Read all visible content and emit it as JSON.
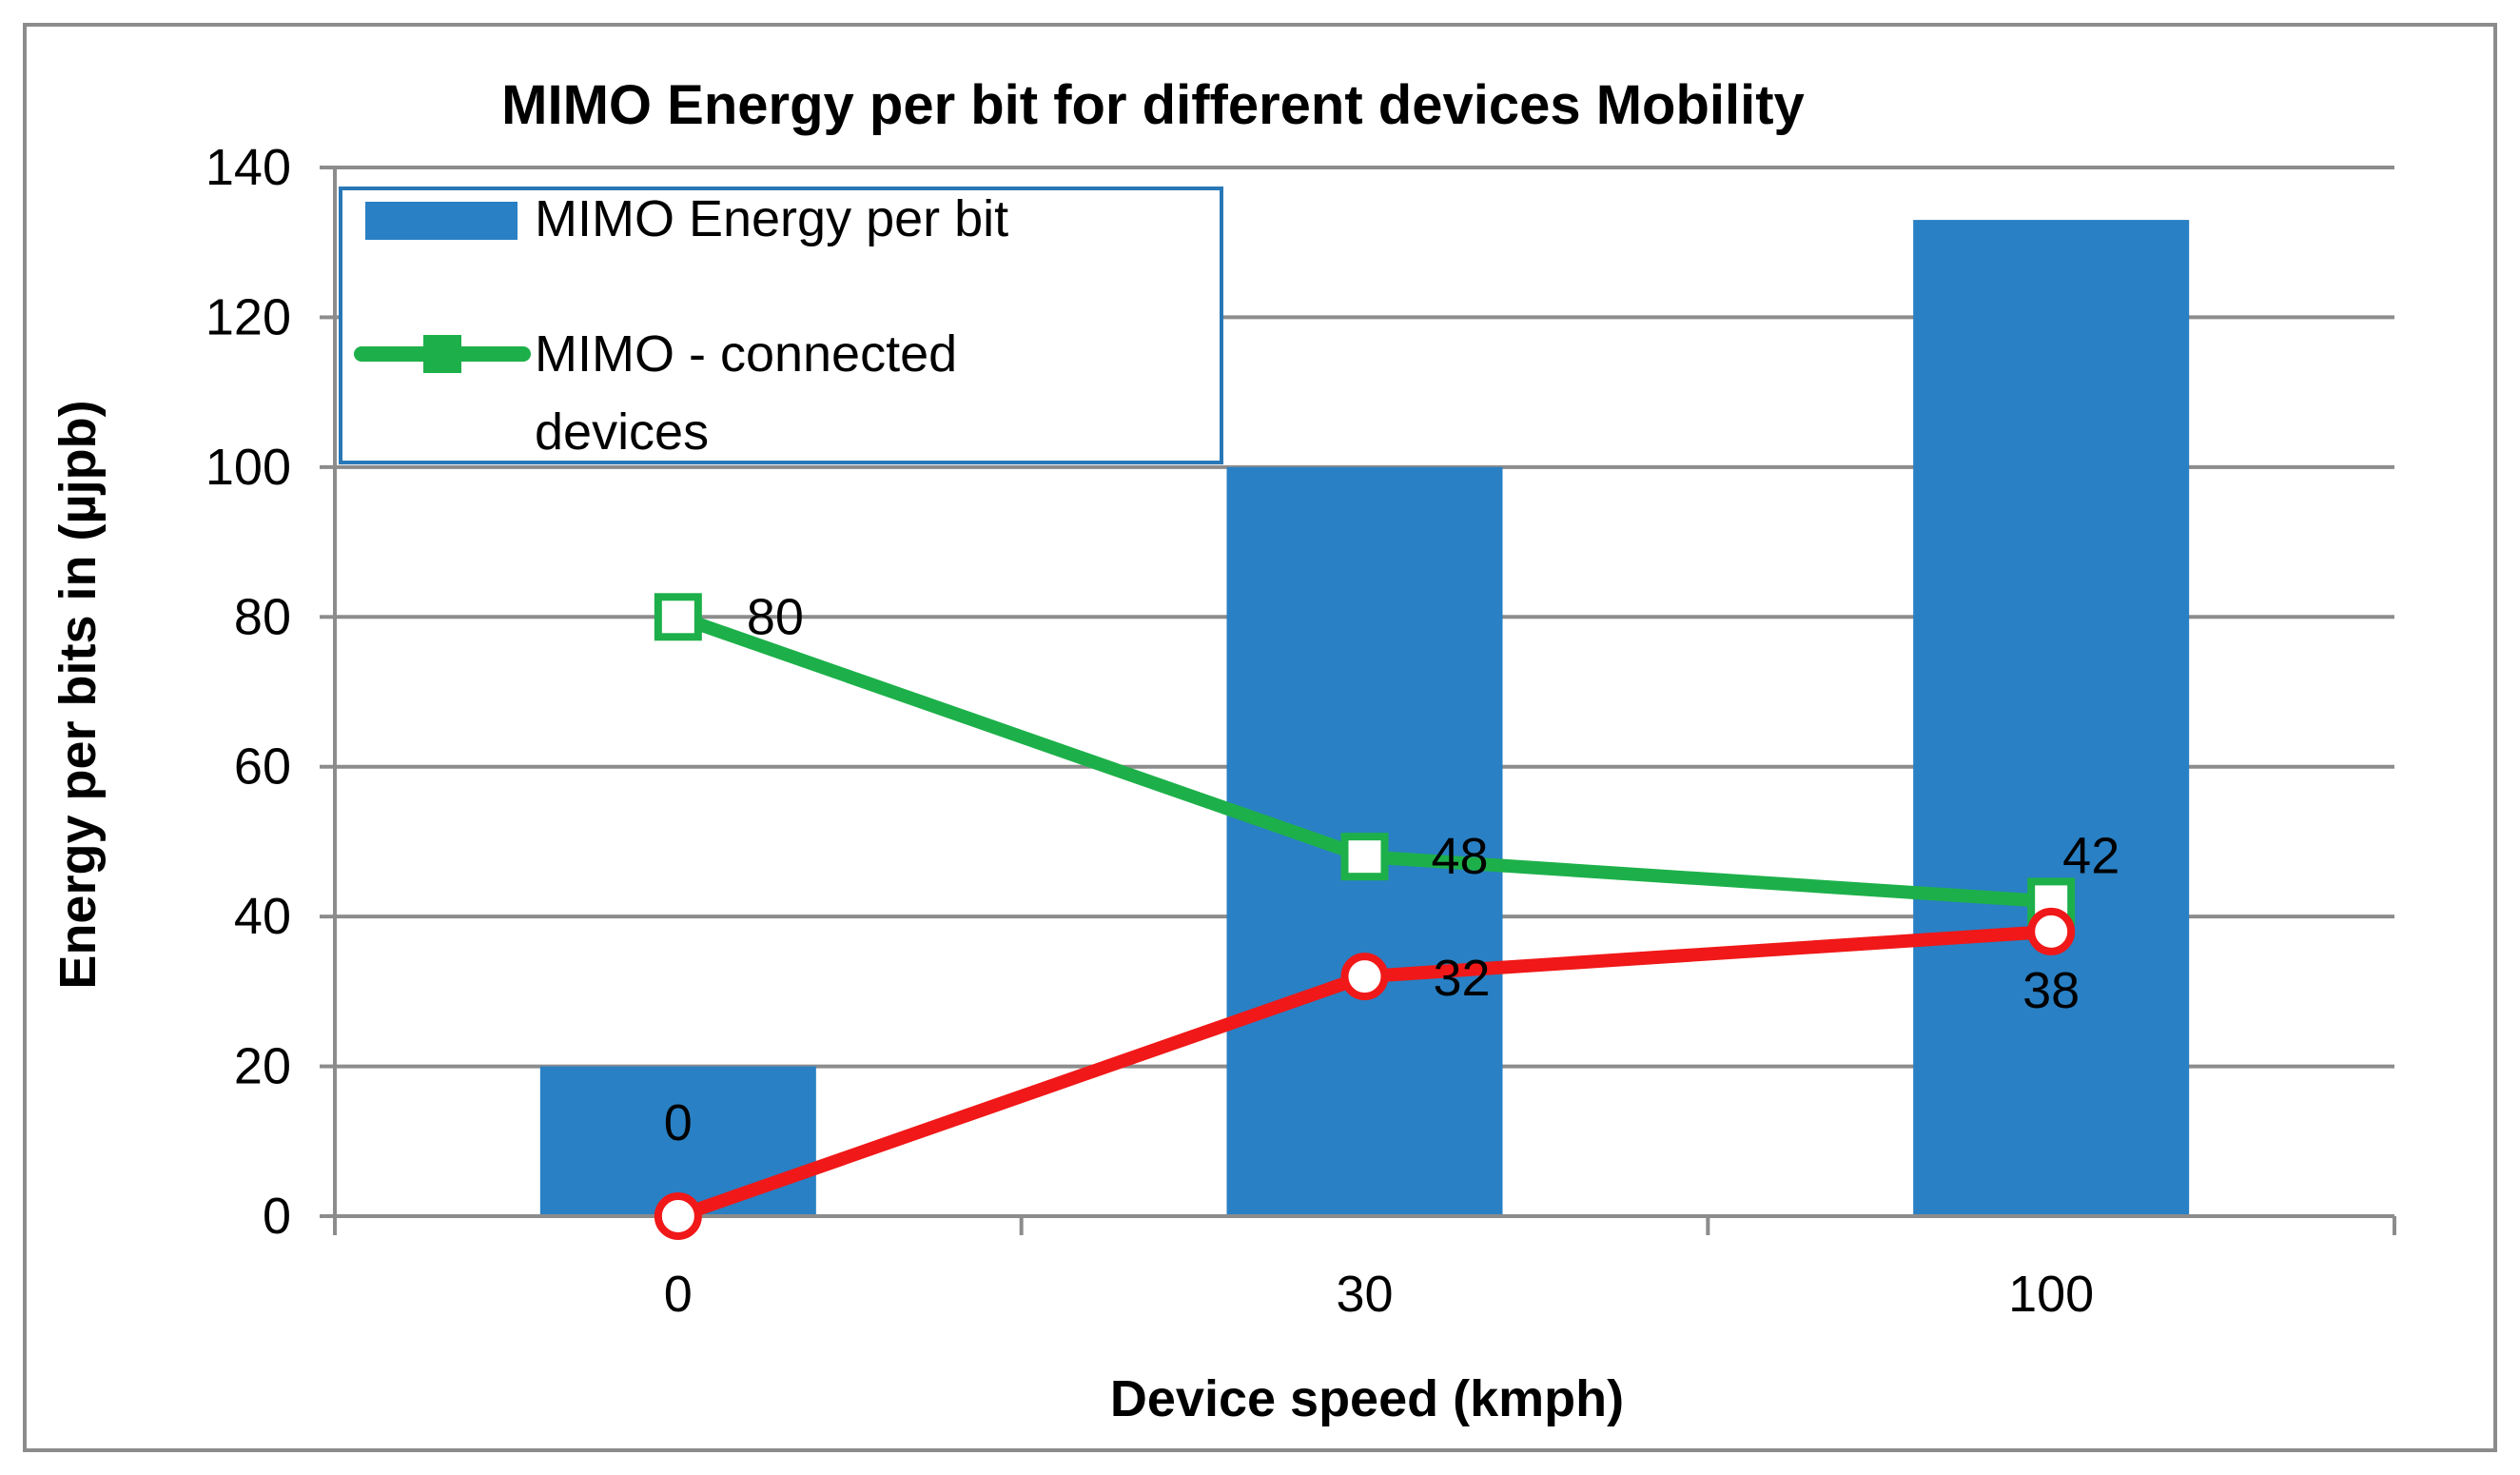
{
  "chart_data": {
    "type": "bar",
    "title": "MIMO Energy per bit for different devices Mobility",
    "xlabel": "Device speed (kmph)",
    "ylabel": "Energy per bits in (µjpb)",
    "categories": [
      "0",
      "30",
      "100"
    ],
    "ylim": [
      0,
      140
    ],
    "yticks": [
      0,
      20,
      40,
      60,
      80,
      100,
      120,
      140
    ],
    "grid": true,
    "legend_position": "top-left",
    "series": [
      {
        "name": "MIMO Energy per bit",
        "kind": "bar",
        "color": "#2980C4",
        "values": [
          20,
          100,
          133
        ],
        "show_labels": false
      },
      {
        "name": "MIMO - connected devices",
        "legend_lines": [
          "MIMO - connected",
          "devices"
        ],
        "kind": "line",
        "marker": "square",
        "color": "#1DB04A",
        "values": [
          80,
          48,
          42
        ],
        "labels": [
          "80",
          "48",
          "42"
        ]
      },
      {
        "name": "",
        "kind": "line",
        "marker": "circle",
        "color": "#F01818",
        "values": [
          0,
          32,
          38
        ],
        "labels": [
          "0",
          "32",
          "38"
        ],
        "in_legend": false
      }
    ]
  }
}
